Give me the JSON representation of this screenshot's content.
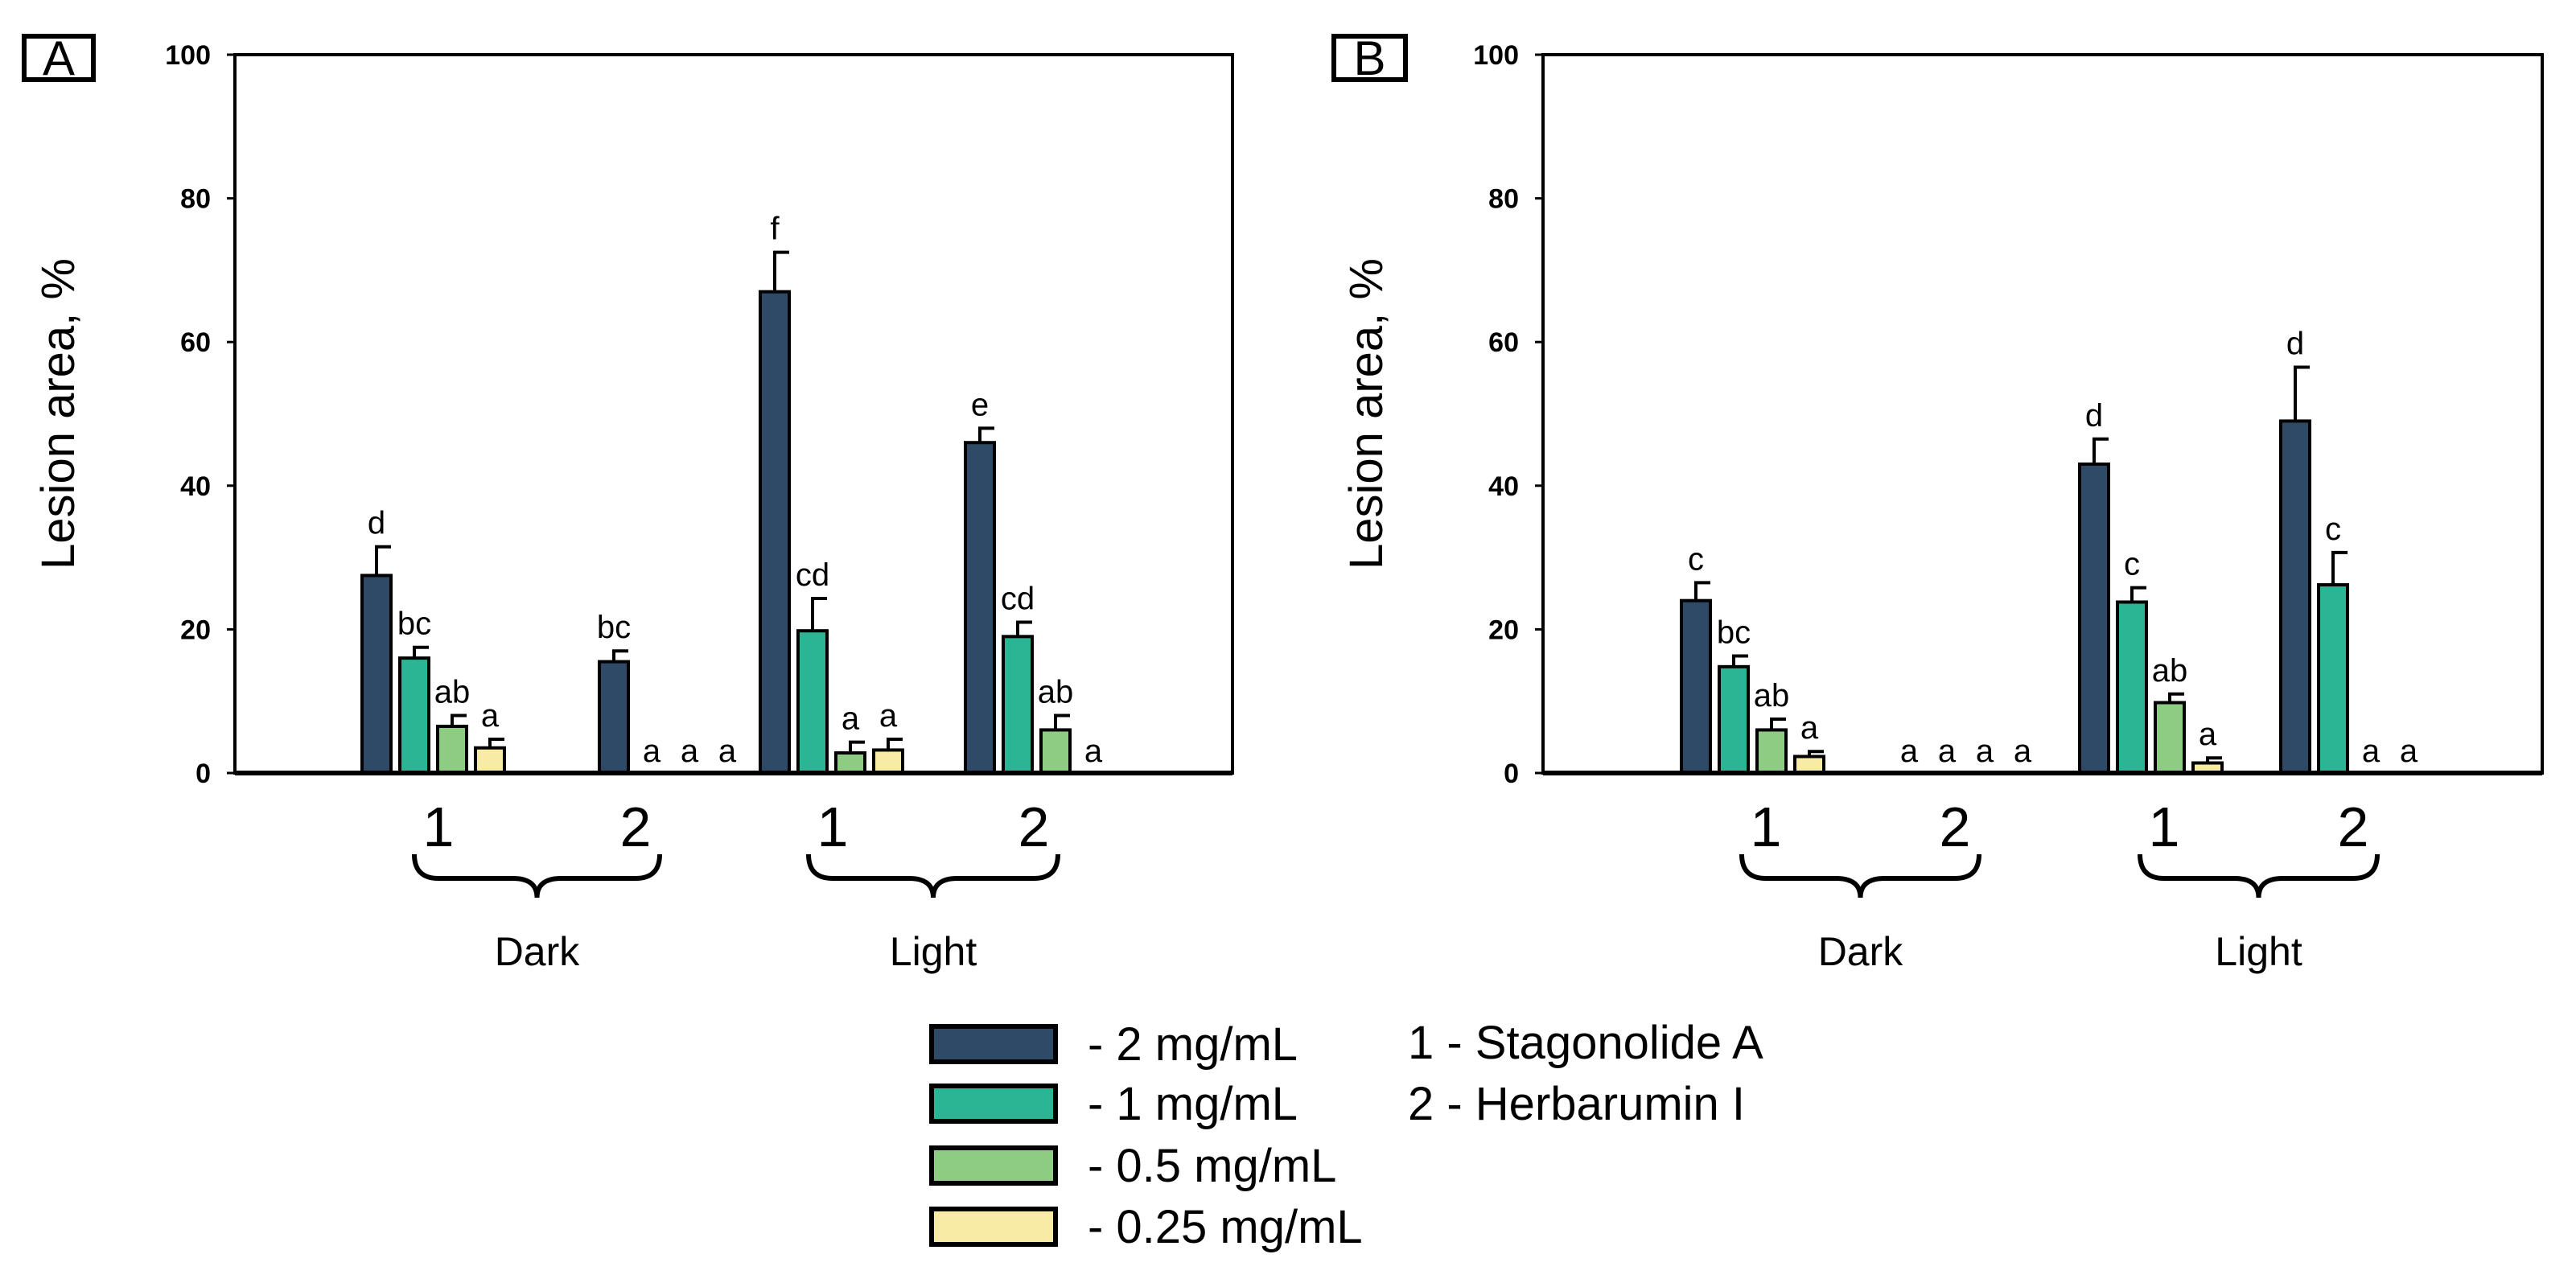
{
  "legend": {
    "dose_prefix": "- ",
    "compounds": [
      "1 - Stagonolide A",
      "2 - Herbarumin I"
    ]
  },
  "colors": {
    "2 mg/mL": "#2e4a66",
    "1 mg/mL": "#2bb594",
    "0.5 mg/mL": "#8dcc82",
    "0.25 mg/mL": "#f7eba6"
  },
  "chart_data": [
    {
      "type": "bar",
      "panel": "A",
      "ylabel": "Lesion area, %",
      "ylim": [
        0,
        100
      ],
      "yticks": [
        0,
        20,
        40,
        60,
        80,
        100
      ],
      "categories": [
        "1",
        "2",
        "1",
        "2"
      ],
      "groups": [
        {
          "label": "Dark",
          "categories": [
            0,
            1
          ]
        },
        {
          "label": "Light",
          "categories": [
            2,
            3
          ]
        }
      ],
      "series": [
        {
          "name": "2 mg/mL",
          "values": [
            27.5,
            15.5,
            67,
            46
          ],
          "errors": [
            4,
            1.5,
            5.5,
            2
          ],
          "labels": [
            "d",
            "bc",
            "f",
            "e"
          ]
        },
        {
          "name": "1 mg/mL",
          "values": [
            16,
            0,
            19.8,
            19
          ],
          "errors": [
            1.5,
            0,
            4.5,
            2
          ],
          "labels": [
            "bc",
            "a",
            "cd",
            "cd"
          ]
        },
        {
          "name": "0.5 mg/mL",
          "values": [
            6.5,
            0,
            2.8,
            6
          ],
          "errors": [
            1.5,
            0,
            1.5,
            2
          ],
          "labels": [
            "ab",
            "a",
            "a",
            "ab"
          ]
        },
        {
          "name": "0.25 mg/mL",
          "values": [
            3.5,
            0,
            3.2,
            0
          ],
          "errors": [
            1.2,
            0,
            1.5,
            0
          ],
          "labels": [
            "a",
            "a",
            "a",
            "a"
          ]
        }
      ]
    },
    {
      "type": "bar",
      "panel": "B",
      "ylabel": "Lesion area, %",
      "ylim": [
        0,
        100
      ],
      "yticks": [
        0,
        20,
        40,
        60,
        80,
        100
      ],
      "categories": [
        "1",
        "2",
        "1",
        "2"
      ],
      "groups": [
        {
          "label": "Dark",
          "categories": [
            0,
            1
          ]
        },
        {
          "label": "Light",
          "categories": [
            2,
            3
          ]
        }
      ],
      "series": [
        {
          "name": "2 mg/mL",
          "values": [
            24,
            0,
            43,
            49
          ],
          "errors": [
            2.5,
            0,
            3.5,
            7.5
          ],
          "labels": [
            "c",
            "a",
            "d",
            "d"
          ]
        },
        {
          "name": "1 mg/mL",
          "values": [
            14.8,
            0,
            23.8,
            26.2
          ],
          "errors": [
            1.5,
            0,
            2,
            4.5
          ],
          "labels": [
            "bc",
            "a",
            "c",
            "c"
          ]
        },
        {
          "name": "0.5 mg/mL",
          "values": [
            6,
            0,
            9.8,
            0
          ],
          "errors": [
            1.5,
            0,
            1.2,
            0
          ],
          "labels": [
            "ab",
            "a",
            "ab",
            "a"
          ]
        },
        {
          "name": "0.25 mg/mL",
          "values": [
            2.3,
            0,
            1.4,
            0
          ],
          "errors": [
            0.7,
            0,
            0.7,
            0
          ],
          "labels": [
            "a",
            "a",
            "a",
            "a"
          ]
        }
      ]
    }
  ]
}
